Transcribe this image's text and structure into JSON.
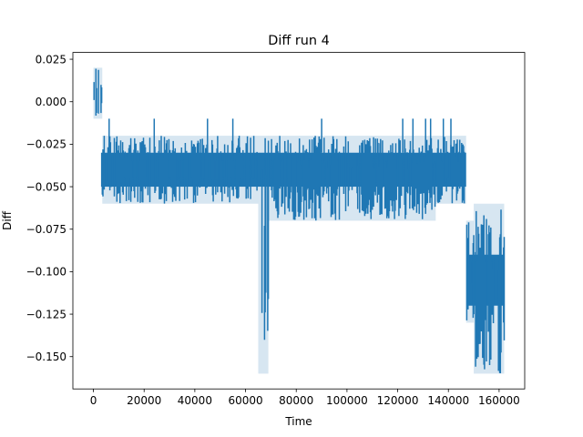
{
  "chart_data": {
    "type": "line",
    "title": "Diff run 4",
    "xlabel": "Time",
    "ylabel": "Diff",
    "xlim": [
      -8100,
      170100
    ],
    "ylim": [
      -0.169,
      0.029
    ],
    "xticks": [
      0,
      20000,
      40000,
      60000,
      80000,
      100000,
      120000,
      140000,
      160000
    ],
    "xtick_labels": [
      "0",
      "20000",
      "40000",
      "60000",
      "80000",
      "100000",
      "120000",
      "140000",
      "160000"
    ],
    "yticks": [
      0.025,
      0.0,
      -0.025,
      -0.05,
      -0.075,
      -0.1,
      -0.125,
      -0.15
    ],
    "ytick_labels": [
      "0.025",
      "0.000",
      "−0.025",
      "−0.050",
      "−0.075",
      "−0.100",
      "−0.125",
      "−0.150"
    ],
    "grid": false,
    "series": [
      {
        "color": "#1f77b4",
        "segments": [
          {
            "x": [
              0,
              3500
            ],
            "low": -0.01,
            "high": 0.02
          },
          {
            "x": [
              3500,
              5000
            ],
            "low": -0.06,
            "high": -0.02
          },
          {
            "x": [
              5000,
              65000
            ],
            "low": -0.06,
            "high": -0.02
          },
          {
            "x": [
              65000,
              69000
            ],
            "low": -0.16,
            "high": -0.02
          },
          {
            "x": [
              69000,
              135000
            ],
            "low": -0.07,
            "high": -0.02
          },
          {
            "x": [
              135000,
              147000
            ],
            "low": -0.06,
            "high": -0.02
          },
          {
            "x": [
              147000,
              150000
            ],
            "low": -0.13,
            "high": -0.07
          },
          {
            "x": [
              150000,
              162000
            ],
            "low": -0.16,
            "high": -0.06
          }
        ],
        "band_core": [
          {
            "x": [
              3000,
              147000
            ],
            "low": -0.05,
            "high": -0.03
          },
          {
            "x": [
              148000,
              162000
            ],
            "low": -0.12,
            "high": -0.09
          }
        ],
        "spikes_up": [
          {
            "x": 6200,
            "y": -0.01
          },
          {
            "x": 24000,
            "y": -0.01
          },
          {
            "x": 45000,
            "y": -0.01
          },
          {
            "x": 55000,
            "y": -0.01
          },
          {
            "x": 90000,
            "y": -0.01
          },
          {
            "x": 122000,
            "y": -0.01
          },
          {
            "x": 126000,
            "y": -0.01
          },
          {
            "x": 131000,
            "y": -0.01
          },
          {
            "x": 133000,
            "y": -0.01
          },
          {
            "x": 138000,
            "y": -0.01
          },
          {
            "x": 141000,
            "y": -0.01
          }
        ]
      }
    ]
  }
}
